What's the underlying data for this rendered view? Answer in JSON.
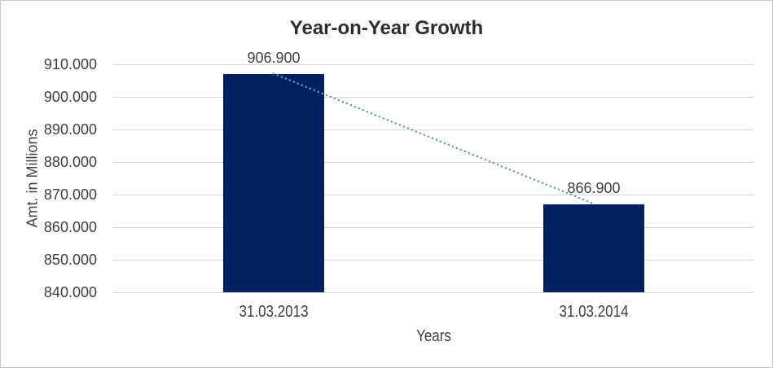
{
  "chart_data": {
    "type": "bar",
    "title": "Year-on-Year Growth",
    "xlabel": "Years",
    "ylabel": "Amt. in Millions",
    "categories": [
      "31.03.2013",
      "31.03.2014"
    ],
    "values": [
      906900,
      866900
    ],
    "data_labels": [
      "906.900",
      "866.900"
    ],
    "ylim": [
      840000,
      910000
    ],
    "y_tick_step": 10000,
    "y_ticks": [
      "910.000",
      "900.000",
      "890.000",
      "880.000",
      "870.000",
      "860.000",
      "850.000",
      "840.000"
    ],
    "grid": true,
    "legend": "none",
    "trendline": {
      "type": "linear",
      "style": "dotted",
      "connects": [
        "bar-1-top",
        "bar-2-top"
      ]
    }
  },
  "colors": {
    "bar": "#002060",
    "trendline": "#5B9BD5",
    "gridline": "#D6D6D6",
    "axis_text": "#404040",
    "title_text": "#2E2E2E",
    "border": "#C9C9C9",
    "background": "#FFFFFF"
  }
}
